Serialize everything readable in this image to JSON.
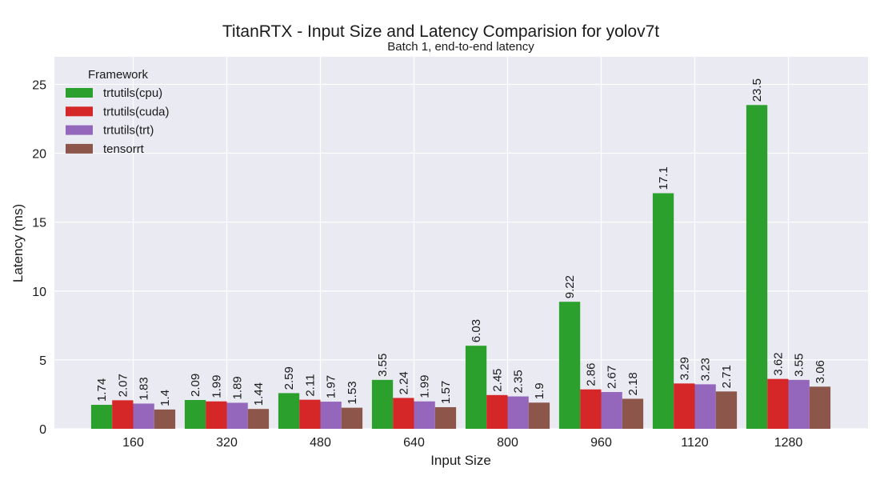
{
  "chart_data": {
    "type": "bar",
    "title": "TitanRTX - Input Size and Latency Comparision for yolov7t",
    "subtitle": "Batch 1, end-to-end latency",
    "xlabel": "Input Size",
    "ylabel": "Latency (ms)",
    "categories": [
      "160",
      "320",
      "480",
      "640",
      "800",
      "960",
      "1120",
      "1280"
    ],
    "ylim": [
      0,
      27
    ],
    "yticks": [
      0,
      5,
      10,
      15,
      20,
      25
    ],
    "grid": true,
    "legend": {
      "title": "Framework",
      "placement": "top-left"
    },
    "series": [
      {
        "name": "trtutils(cpu)",
        "color": "#2ca02c",
        "values": [
          1.74,
          2.09,
          2.59,
          3.55,
          6.03,
          9.22,
          17.1,
          23.5
        ]
      },
      {
        "name": "trtutils(cuda)",
        "color": "#d62728",
        "values": [
          2.07,
          1.99,
          2.11,
          2.24,
          2.45,
          2.86,
          3.29,
          3.62
        ]
      },
      {
        "name": "trtutils(trt)",
        "color": "#9467bd",
        "values": [
          1.83,
          1.89,
          1.97,
          1.99,
          2.35,
          2.67,
          3.23,
          3.55
        ]
      },
      {
        "name": "tensorrt",
        "color": "#8c564b",
        "values": [
          1.4,
          1.44,
          1.53,
          1.57,
          1.9,
          2.18,
          2.71,
          3.06
        ]
      }
    ]
  }
}
